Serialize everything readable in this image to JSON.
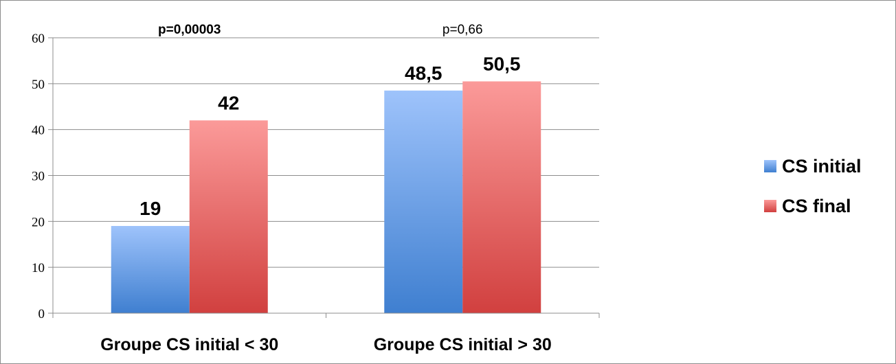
{
  "chart_data": {
    "type": "bar",
    "categories": [
      "Groupe CS initial < 30",
      "Groupe CS initial > 30"
    ],
    "series": [
      {
        "name": "CS initial",
        "values": [
          19,
          48.5
        ],
        "labels": [
          "19",
          "48,5"
        ],
        "color_top": "#9ec3fb",
        "color_bottom": "#3f7fd0"
      },
      {
        "name": "CS final",
        "values": [
          42,
          50.5
        ],
        "labels": [
          "42",
          "50,5"
        ],
        "color_top": "#fb9a99",
        "color_bottom": "#d1403f"
      }
    ],
    "ylim": [
      0,
      60
    ],
    "yticks": [
      0,
      10,
      20,
      30,
      40,
      50,
      60
    ],
    "annotations": [
      "p=0,00003",
      "p=0,66"
    ],
    "grid": true,
    "legend": "right"
  }
}
